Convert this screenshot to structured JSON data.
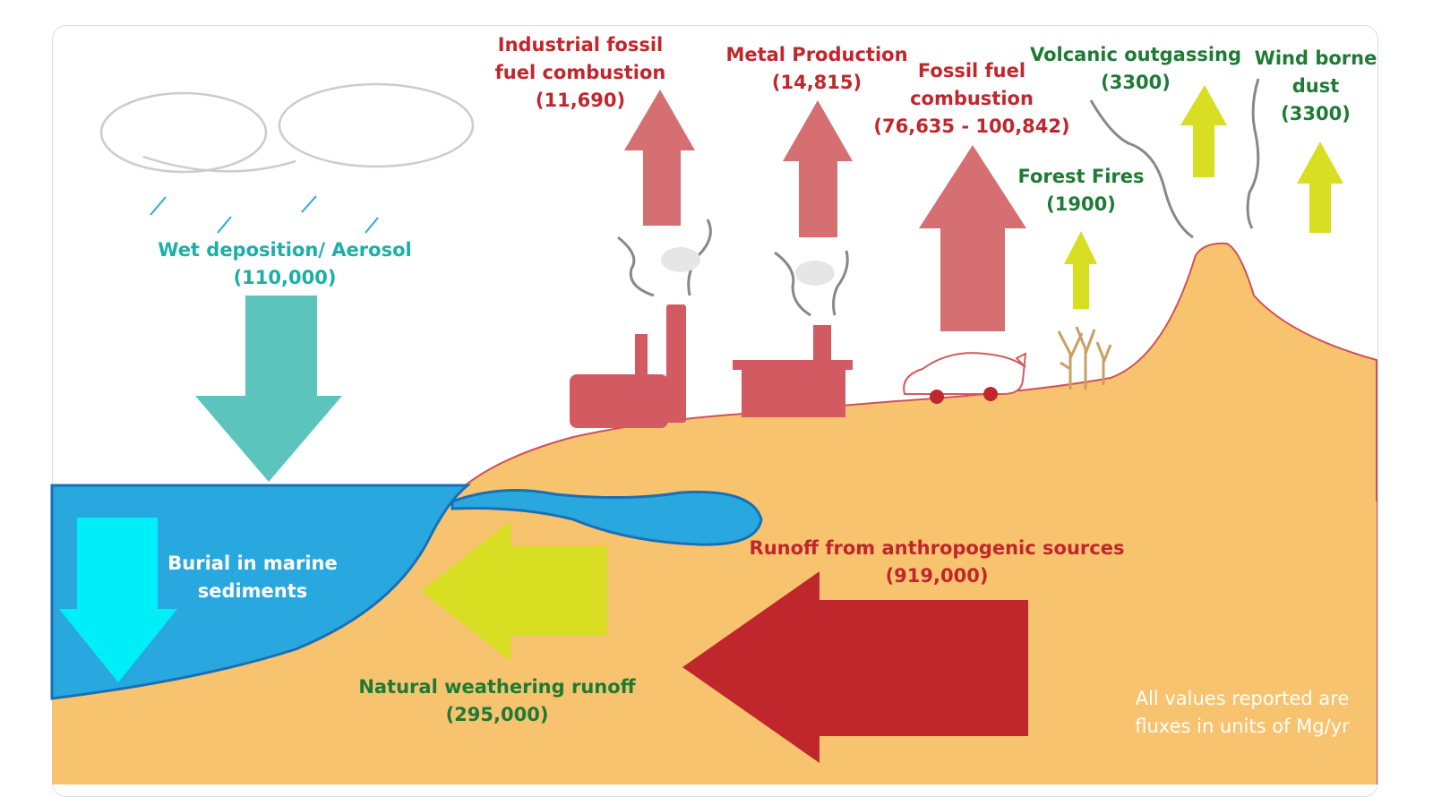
{
  "labels": {
    "wet_deposition": {
      "name": "Wet deposition/ Aerosol",
      "value": "(110,000)"
    },
    "burial": {
      "line1": "Burial in marine",
      "line2": "sediments"
    },
    "industrial": {
      "line1": "Industrial fossil",
      "line2": "fuel combustion",
      "value": "(11,690)"
    },
    "metal": {
      "name": "Metal Production",
      "value": "(14,815)"
    },
    "fossil_fuel": {
      "line1": "Fossil fuel",
      "line2": "combustion",
      "value": "(76,635 - 100,842)"
    },
    "volcanic": {
      "name": "Volcanic outgassing",
      "value": "(3300)"
    },
    "wind": {
      "line1": "Wind borne",
      "line2": "dust",
      "value": "(3300)"
    },
    "forest_fires": {
      "name": "Forest Fires",
      "value": "(1900)"
    },
    "anthropogenic_runoff": {
      "name": "Runoff from anthropogenic sources",
      "value": "(919,000)"
    },
    "natural_runoff": {
      "name": "Natural weathering runoff",
      "value": "(295,000)"
    },
    "note": {
      "line1": "All values reported are",
      "line2": "fluxes in units of Mg/yr"
    }
  },
  "colors": {
    "land": "#F8C36E",
    "ocean": "#29A8E0",
    "deposition_arrow": "#5BC5BD",
    "burial_arrow": "#00EEF8",
    "emission_arrow": "#D66F72",
    "natural_arrow": "#D8DE22",
    "anthropogenic_arrow": "#C0272D",
    "structures": "#D35A60"
  }
}
